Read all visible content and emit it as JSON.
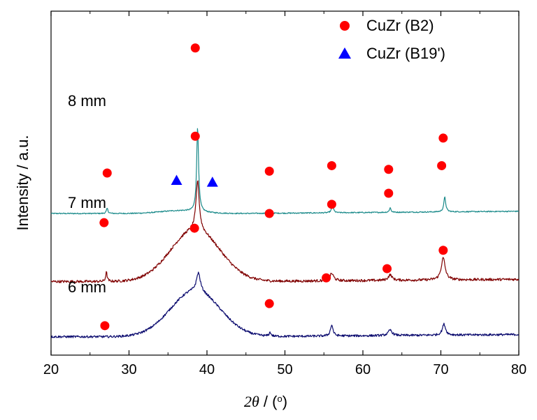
{
  "chart_data": {
    "type": "line",
    "title": "",
    "xlabel_parts": {
      "symbol": "2θ",
      "sep": " / (",
      "unit": "o",
      "close": ")"
    },
    "ylabel": "Intensity / a.u.",
    "xlim": [
      20,
      80
    ],
    "x_ticks": [
      20,
      30,
      40,
      50,
      60,
      70,
      80
    ],
    "y_ticks_shown": false,
    "grid": false,
    "legend_position": "top-right",
    "legend": [
      {
        "name": "CuZr (B2)",
        "marker": "circle",
        "color": "#ff0000"
      },
      {
        "name": "CuZr (B19')",
        "marker": "triangle",
        "color": "#0000ff"
      }
    ],
    "series": [
      {
        "name": "8 mm",
        "color": "#1a8a8a",
        "baseline": 0.72,
        "noise": 0.003,
        "hump": {
          "center": 36.5,
          "width": 3.5,
          "height": 0.015
        },
        "peaks": [
          {
            "x": 27.2,
            "h": 0.028,
            "w": 0.12
          },
          {
            "x": 38.8,
            "h": 0.46,
            "w": 0.15
          },
          {
            "x": 48.1,
            "h": 0.02,
            "w": 0.1
          },
          {
            "x": 56.1,
            "h": 0.04,
            "w": 0.15
          },
          {
            "x": 63.5,
            "h": 0.025,
            "w": 0.12
          },
          {
            "x": 70.5,
            "h": 0.08,
            "w": 0.15
          }
        ],
        "markers": [
          {
            "type": "B2",
            "x": 27.2,
            "y": 0.94
          },
          {
            "type": "B2",
            "x": 38.5,
            "y": 1.62
          },
          {
            "type": "B2",
            "x": 48.0,
            "y": 0.95
          },
          {
            "type": "B2",
            "x": 56.0,
            "y": 0.98
          },
          {
            "type": "B2",
            "x": 63.3,
            "y": 0.96
          },
          {
            "type": "B2",
            "x": 70.3,
            "y": 1.13
          },
          {
            "type": "B19'",
            "x": 36.1,
            "y": 0.9
          },
          {
            "type": "B19'",
            "x": 40.7,
            "y": 0.89
          }
        ]
      },
      {
        "name": "7 mm",
        "color": "#800000",
        "baseline": 0.35,
        "noise": 0.007,
        "hump": {
          "center": 38.5,
          "width": 4.5,
          "height": 0.28
        },
        "peaks": [
          {
            "x": 27.1,
            "h": 0.05,
            "w": 0.12
          },
          {
            "x": 38.8,
            "h": 0.27,
            "w": 0.25
          },
          {
            "x": 56.0,
            "h": 0.04,
            "w": 0.3
          },
          {
            "x": 63.5,
            "h": 0.03,
            "w": 0.3
          },
          {
            "x": 70.3,
            "h": 0.12,
            "w": 0.3
          }
        ],
        "markers": [
          {
            "type": "B2",
            "x": 26.8,
            "y": 0.67
          },
          {
            "type": "B2",
            "x": 38.5,
            "y": 1.14
          },
          {
            "type": "B2",
            "x": 48.0,
            "y": 0.72
          },
          {
            "type": "B2",
            "x": 56.0,
            "y": 0.77
          },
          {
            "type": "B2",
            "x": 63.3,
            "y": 0.83
          },
          {
            "type": "B2",
            "x": 70.1,
            "y": 0.98
          }
        ]
      },
      {
        "name": "6 mm",
        "color": "#0a0a6e",
        "baseline": 0.05,
        "noise": 0.006,
        "hump": {
          "center": 38.5,
          "width": 4.5,
          "height": 0.25
        },
        "peaks": [
          {
            "x": 38.9,
            "h": 0.1,
            "w": 0.3
          },
          {
            "x": 48.1,
            "h": 0.02,
            "w": 0.15
          },
          {
            "x": 56.0,
            "h": 0.06,
            "w": 0.2
          },
          {
            "x": 63.5,
            "h": 0.03,
            "w": 0.3
          },
          {
            "x": 70.4,
            "h": 0.06,
            "w": 0.25
          }
        ],
        "markers": [
          {
            "type": "B2",
            "x": 26.9,
            "y": 0.11
          },
          {
            "type": "B2",
            "x": 38.4,
            "y": 0.64
          },
          {
            "type": "B2",
            "x": 48.0,
            "y": 0.23
          },
          {
            "type": "B2",
            "x": 55.3,
            "y": 0.37
          },
          {
            "type": "B2",
            "x": 63.1,
            "y": 0.42
          },
          {
            "type": "B2",
            "x": 70.3,
            "y": 0.52
          }
        ]
      }
    ]
  }
}
